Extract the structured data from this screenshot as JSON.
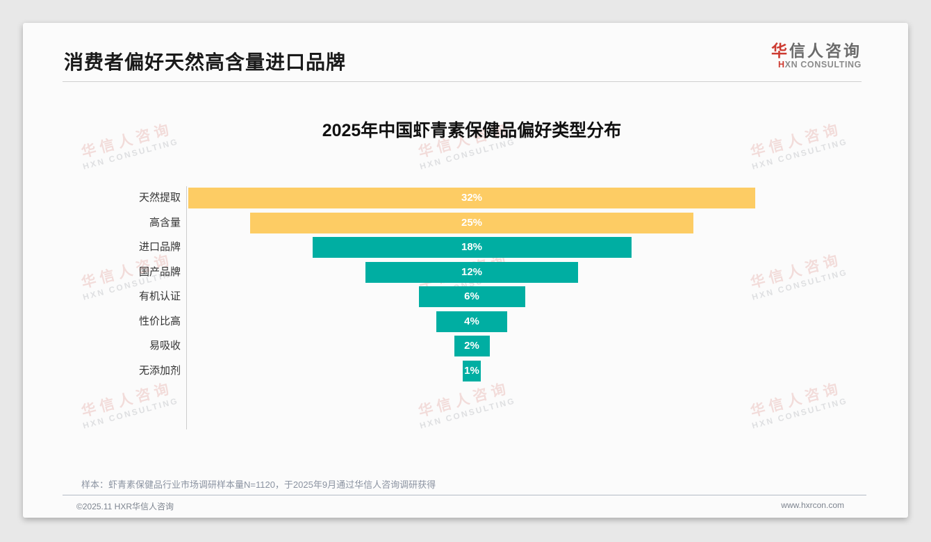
{
  "header": {
    "title": "消费者偏好天然高含量进口品牌"
  },
  "logo": {
    "cn_first": "华",
    "cn_rest": "信人咨询",
    "en_first": "H",
    "en_rest": "XN CONSULTING"
  },
  "chart_data": {
    "type": "bar",
    "variant": "centered-funnel",
    "title": "2025年中国虾青素保健品偏好类型分布",
    "categories": [
      "天然提取",
      "高含量",
      "进口品牌",
      "国产品牌",
      "有机认证",
      "性价比高",
      "易吸收",
      "无添加剂"
    ],
    "values": [
      32,
      25,
      18,
      12,
      6,
      4,
      2,
      1
    ],
    "labels": [
      "32%",
      "25%",
      "18%",
      "12%",
      "6%",
      "4%",
      "2%",
      "1%"
    ],
    "unit": "%",
    "highlight_indices": [
      0,
      1
    ],
    "colors": {
      "highlight": "#FDCC64",
      "base": "#00AEA2",
      "value_text": "#ffffff"
    },
    "xlim": [
      0,
      32
    ],
    "grid": false,
    "legend": false,
    "xlabel": "",
    "ylabel": ""
  },
  "watermark": {
    "cn": "华信人咨询",
    "en": "HXN CONSULTING"
  },
  "footer": {
    "sample_note": "样本：虾青素保健品行业市场调研样本量N=1120，于2025年9月通过华信人咨询调研获得",
    "copyright": "©2025.11 HXR华信人咨询",
    "website": "www.hxrcon.com"
  }
}
